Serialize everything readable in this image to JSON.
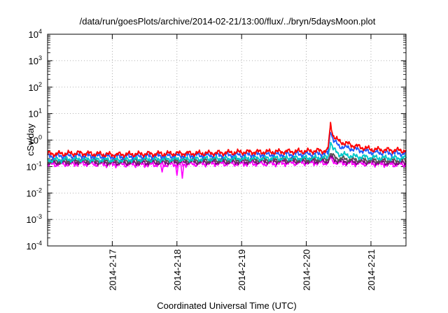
{
  "chart_data": {
    "type": "line",
    "title": "/data/run/goesPlots/archive/2014-02-21/13:00/flux/../bryn/5daysMoon.plot",
    "xlabel": "Coordinated Universal Time (UTC)",
    "ylabel": "cSv/day",
    "yscale": "log",
    "ylim": [
      0.0001,
      10000
    ],
    "y_ticks": [
      {
        "base": "10",
        "exp": "-4"
      },
      {
        "base": "10",
        "exp": "-3"
      },
      {
        "base": "10",
        "exp": "-2"
      },
      {
        "base": "10",
        "exp": "-1"
      },
      {
        "base": "10",
        "exp": "0"
      },
      {
        "base": "10",
        "exp": "1"
      },
      {
        "base": "10",
        "exp": "2"
      },
      {
        "base": "10",
        "exp": "3"
      },
      {
        "base": "10",
        "exp": "4"
      }
    ],
    "xlim": [
      "2014-02-16 00:00",
      "2014-02-21 13:00"
    ],
    "x_ticks": [
      "2014-2-17",
      "2014-2-18",
      "2014-2-19",
      "2014-2-20",
      "2014-2-21"
    ],
    "grid": true,
    "series": [
      {
        "color": "#ff0000",
        "x": [
          "2014-02-16 00:00",
          "2014-02-16 12:00",
          "2014-02-17 00:00",
          "2014-02-17 12:00",
          "2014-02-18 00:00",
          "2014-02-18 12:00",
          "2014-02-19 00:00",
          "2014-02-19 12:00",
          "2014-02-20 00:00",
          "2014-02-20 08:00",
          "2014-02-20 09:00",
          "2014-02-20 10:00",
          "2014-02-20 12:00",
          "2014-02-20 18:00",
          "2014-02-21 00:00",
          "2014-02-21 06:00",
          "2014-02-21 13:00"
        ],
        "values": [
          0.3,
          0.32,
          0.28,
          0.3,
          0.31,
          0.32,
          0.35,
          0.36,
          0.38,
          0.4,
          4.0,
          1.5,
          0.9,
          0.6,
          0.45,
          0.42,
          0.4
        ]
      },
      {
        "color": "#1f5cff",
        "x": [
          "2014-02-16 00:00",
          "2014-02-16 12:00",
          "2014-02-17 00:00",
          "2014-02-17 12:00",
          "2014-02-18 00:00",
          "2014-02-18 12:00",
          "2014-02-19 00:00",
          "2014-02-19 12:00",
          "2014-02-20 00:00",
          "2014-02-20 08:00",
          "2014-02-20 09:00",
          "2014-02-20 10:00",
          "2014-02-20 12:00",
          "2014-02-20 18:00",
          "2014-02-21 00:00",
          "2014-02-21 06:00",
          "2014-02-21 13:00"
        ],
        "values": [
          0.25,
          0.26,
          0.24,
          0.25,
          0.26,
          0.27,
          0.28,
          0.29,
          0.3,
          0.31,
          2.5,
          1.0,
          0.6,
          0.45,
          0.35,
          0.33,
          0.31
        ]
      },
      {
        "color": "#00c8c8",
        "x": [
          "2014-02-16 00:00",
          "2014-02-16 12:00",
          "2014-02-17 00:00",
          "2014-02-17 12:00",
          "2014-02-18 00:00",
          "2014-02-18 12:00",
          "2014-02-19 00:00",
          "2014-02-19 12:00",
          "2014-02-20 00:00",
          "2014-02-20 08:00",
          "2014-02-20 09:00",
          "2014-02-20 10:00",
          "2014-02-20 12:00",
          "2014-02-20 18:00",
          "2014-02-21 00:00",
          "2014-02-21 06:00",
          "2014-02-21 13:00"
        ],
        "values": [
          0.18,
          0.19,
          0.18,
          0.19,
          0.19,
          0.2,
          0.2,
          0.21,
          0.21,
          0.22,
          0.9,
          0.45,
          0.3,
          0.24,
          0.22,
          0.21,
          0.21
        ]
      },
      {
        "color": "#555555",
        "x": [
          "2014-02-16 00:00",
          "2014-02-16 12:00",
          "2014-02-17 00:00",
          "2014-02-17 12:00",
          "2014-02-18 00:00",
          "2014-02-18 12:00",
          "2014-02-19 00:00",
          "2014-02-19 12:00",
          "2014-02-20 00:00",
          "2014-02-20 08:00",
          "2014-02-20 09:00",
          "2014-02-20 10:00",
          "2014-02-20 12:00",
          "2014-02-20 18:00",
          "2014-02-21 00:00",
          "2014-02-21 06:00",
          "2014-02-21 13:00"
        ],
        "values": [
          0.16,
          0.17,
          0.16,
          0.17,
          0.17,
          0.17,
          0.18,
          0.18,
          0.18,
          0.19,
          0.3,
          0.24,
          0.2,
          0.18,
          0.17,
          0.17,
          0.17
        ]
      },
      {
        "color": "#800080",
        "x": [
          "2014-02-16 00:00",
          "2014-02-16 12:00",
          "2014-02-17 00:00",
          "2014-02-17 12:00",
          "2014-02-18 00:00",
          "2014-02-18 12:00",
          "2014-02-19 00:00",
          "2014-02-19 12:00",
          "2014-02-20 00:00",
          "2014-02-20 08:00",
          "2014-02-20 09:00",
          "2014-02-20 10:00",
          "2014-02-20 12:00",
          "2014-02-20 18:00",
          "2014-02-21 00:00",
          "2014-02-21 06:00",
          "2014-02-21 13:00"
        ],
        "values": [
          0.14,
          0.15,
          0.14,
          0.14,
          0.15,
          0.15,
          0.15,
          0.16,
          0.16,
          0.16,
          0.24,
          0.19,
          0.16,
          0.15,
          0.15,
          0.14,
          0.14
        ]
      },
      {
        "color": "#ff00ff",
        "x": [
          "2014-02-16 00:00",
          "2014-02-16 12:00",
          "2014-02-17 00:00",
          "2014-02-17 12:00",
          "2014-02-18 00:00",
          "2014-02-18 12:00",
          "2014-02-19 00:00",
          "2014-02-19 12:00",
          "2014-02-20 00:00",
          "2014-02-20 08:00",
          "2014-02-20 09:00",
          "2014-02-20 10:00",
          "2014-02-20 12:00",
          "2014-02-20 18:00",
          "2014-02-21 00:00",
          "2014-02-21 06:00",
          "2014-02-21 13:00"
        ],
        "values": [
          0.12,
          0.13,
          0.12,
          0.12,
          0.12,
          0.13,
          0.13,
          0.13,
          0.14,
          0.14,
          0.2,
          0.16,
          0.14,
          0.13,
          0.13,
          0.12,
          0.12
        ]
      }
    ],
    "dips": [
      {
        "x": "2014-02-17 18:30",
        "value": 0.06
      },
      {
        "x": "2014-02-18 00:00",
        "value": 0.045
      },
      {
        "x": "2014-02-18 02:00",
        "value": 0.035
      }
    ]
  }
}
